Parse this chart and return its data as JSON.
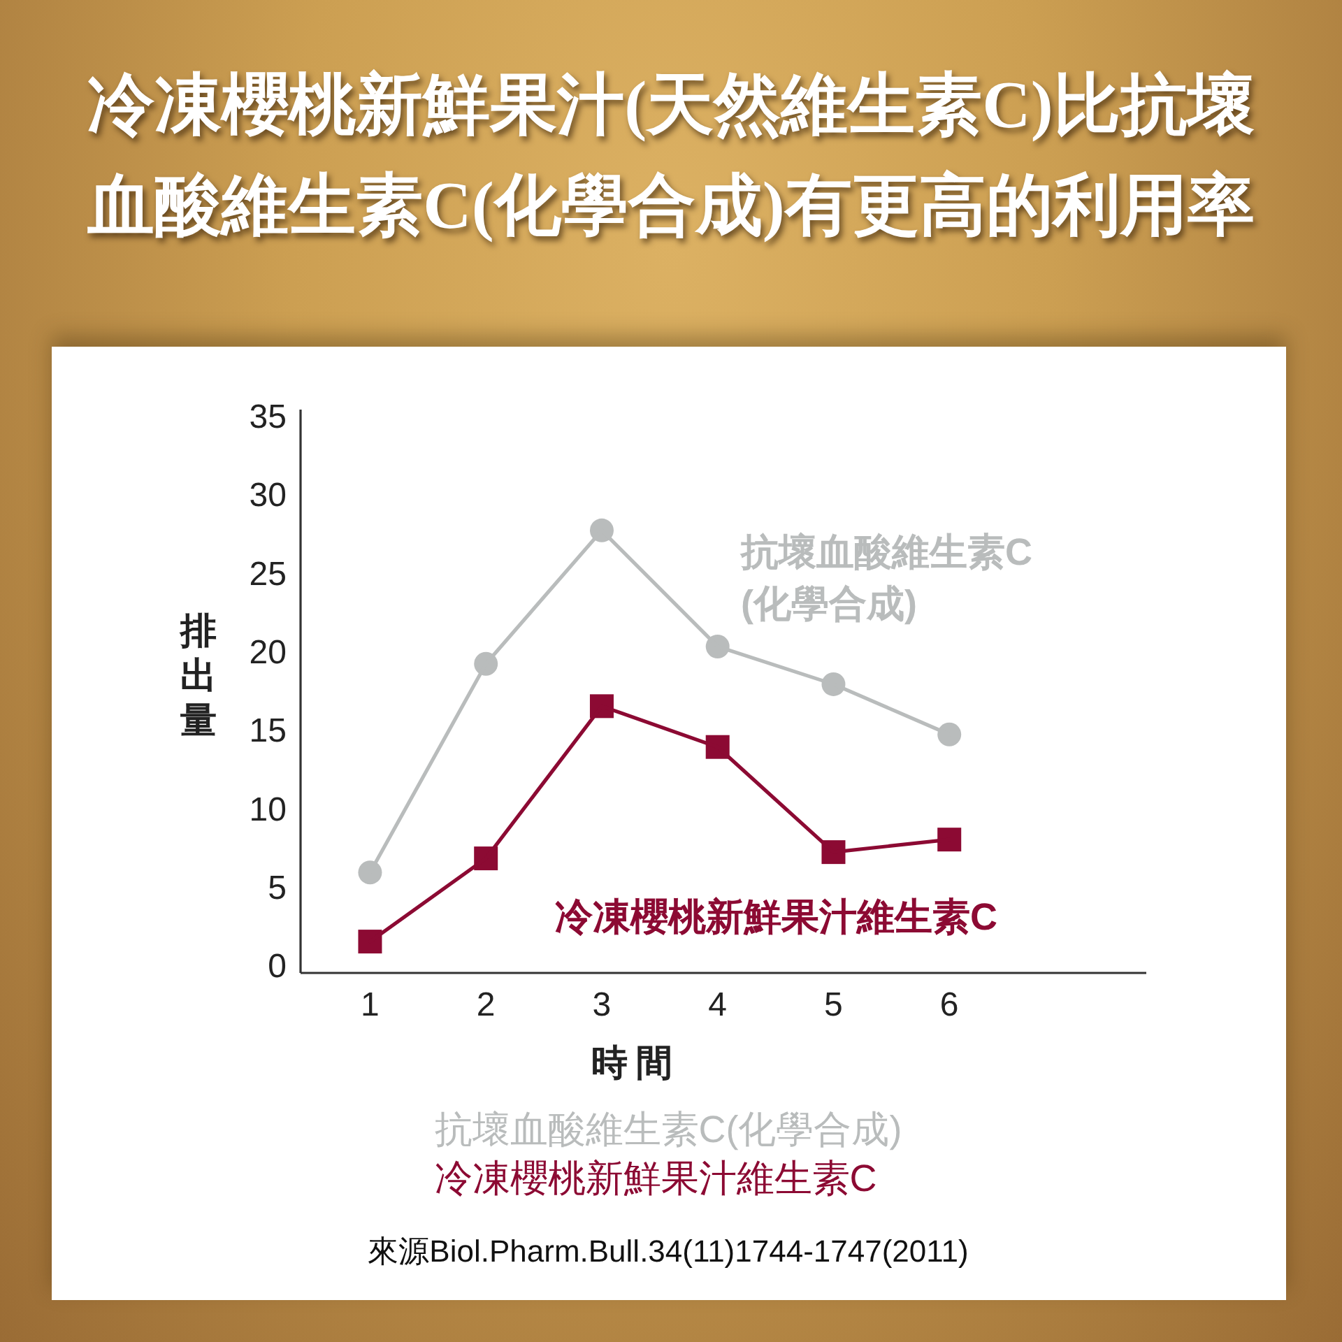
{
  "chart_data": {
    "type": "line",
    "title": "冷凍櫻桃新鮮果汁(天然維生素C)比抗壞血酸維生素C(化學合成)有更高的利用率",
    "xlabel": "時間",
    "ylabel": "排出量",
    "x": [
      1,
      2,
      3,
      4,
      5,
      6
    ],
    "xlim": [
      0.4,
      7.7
    ],
    "xticks": [
      1,
      2,
      3,
      4,
      5,
      6
    ],
    "ylim": [
      -0.4,
      35.5
    ],
    "yticks": [
      0,
      5,
      10,
      15,
      20,
      25,
      30,
      35
    ],
    "series": [
      {
        "name": "抗壞血酸維生素C(化學合成)",
        "color": "#b9bcbc",
        "marker": "circle",
        "values": [
          6.0,
          19.3,
          27.8,
          20.4,
          18.0,
          14.8
        ]
      },
      {
        "name": "冷凍櫻桃新鮮果汁維生素C",
        "color": "#8c0a33",
        "marker": "square",
        "values": [
          1.6,
          6.9,
          16.6,
          14.0,
          7.3,
          8.1
        ]
      }
    ],
    "legend": "bottom",
    "line_style": "solid",
    "annotations": [
      "來源Biol.Pharm.Bull.34(11)1744-1747(2011)"
    ]
  }
}
